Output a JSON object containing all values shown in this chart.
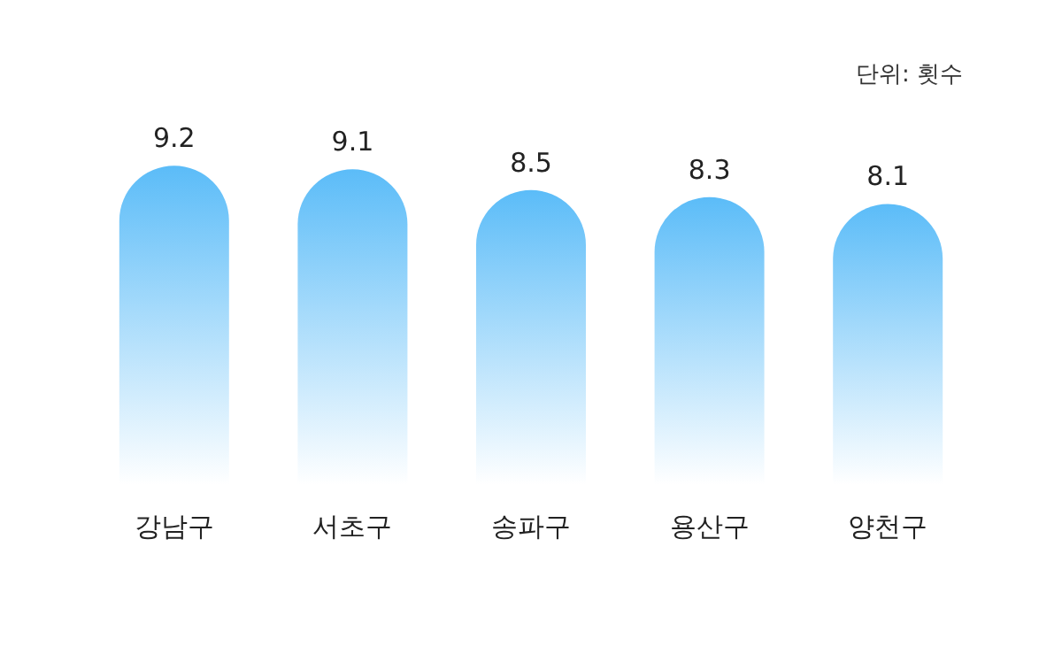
{
  "chart_data": {
    "type": "bar",
    "categories": [
      "강남구",
      "서초구",
      "송파구",
      "용산구",
      "양천구"
    ],
    "values": [
      9.2,
      9.1,
      8.5,
      8.3,
      8.1
    ],
    "color": "#5bbcf8",
    "data_labels": true,
    "annotations": [
      "단위: 횟수"
    ]
  }
}
